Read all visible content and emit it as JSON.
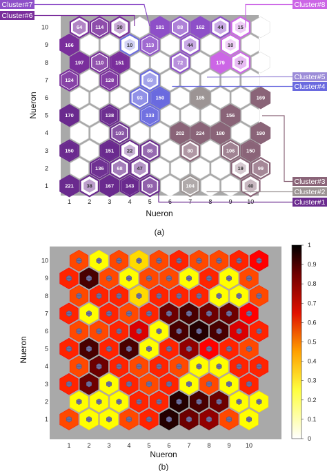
{
  "figure_a": {
    "caption": "(a)",
    "xlabel": "Nueron",
    "ylabel": "Nueron",
    "cluster_labels": [
      "Cluster#7",
      "Cluster#6",
      "Cluster#8",
      "Cluster#5",
      "Cluster#4",
      "Cluster#3",
      "Cluster#2",
      "Cluster#1"
    ],
    "cluster_colors": {
      "Cluster#1": "#6a2a8e",
      "Cluster#2": "#9c9494",
      "Cluster#3": "#8a6478",
      "Cluster#4": "#6a6adf",
      "Cluster#5": "#9c8cd8",
      "Cluster#6": "#7a2e9c",
      "Cluster#7": "#8e4fc8",
      "Cluster#8": "#cc66e6"
    }
  },
  "figure_b": {
    "caption": "(b)",
    "xlabel": "Nueron",
    "ylabel": "Nueron",
    "colorbar_ticks": [
      "0",
      "0.1",
      "0.2",
      "0.3",
      "0.4",
      "0.5",
      "0.6",
      "0.7",
      "0.8",
      "0.9",
      "1"
    ]
  },
  "chart_data": [
    {
      "type": "heatmap",
      "title": "",
      "xlabel": "Nueron",
      "ylabel": "Nueron",
      "x_ticks": [
        1,
        2,
        3,
        4,
        5,
        6,
        7,
        8,
        9,
        10
      ],
      "y_ticks": [
        1,
        2,
        3,
        4,
        5,
        6,
        7,
        8,
        9,
        10
      ],
      "cells": [
        {
          "row": 10,
          "col": 1,
          "count": 64,
          "cluster": "Cluster#6"
        },
        {
          "row": 10,
          "col": 2,
          "count": 114,
          "cluster": "Cluster#6"
        },
        {
          "row": 10,
          "col": 3,
          "count": 30,
          "cluster": "Cluster#6"
        },
        {
          "row": 10,
          "col": 5,
          "count": 181,
          "cluster": "Cluster#7"
        },
        {
          "row": 10,
          "col": 6,
          "count": 88,
          "cluster": "Cluster#7"
        },
        {
          "row": 10,
          "col": 7,
          "count": 162,
          "cluster": "Cluster#7"
        },
        {
          "row": 10,
          "col": 8,
          "count": 44,
          "cluster": "Cluster#7"
        },
        {
          "row": 10,
          "col": 9,
          "count": 15,
          "cluster": "Cluster#8"
        },
        {
          "row": 9,
          "col": 1,
          "count": 166,
          "cluster": "Cluster#6"
        },
        {
          "row": 9,
          "col": 4,
          "count": 10,
          "cluster": "Cluster#4"
        },
        {
          "row": 9,
          "col": 5,
          "count": 113,
          "cluster": "Cluster#7"
        },
        {
          "row": 9,
          "col": 7,
          "count": 44,
          "cluster": "Cluster#7"
        },
        {
          "row": 9,
          "col": 9,
          "count": 10,
          "cluster": "Cluster#8"
        },
        {
          "row": 8,
          "col": 1,
          "count": 197,
          "cluster": "Cluster#6"
        },
        {
          "row": 8,
          "col": 2,
          "count": 110,
          "cluster": "Cluster#6"
        },
        {
          "row": 8,
          "col": 3,
          "count": 151,
          "cluster": "Cluster#6"
        },
        {
          "row": 8,
          "col": 6,
          "count": 72,
          "cluster": "Cluster#7"
        },
        {
          "row": 8,
          "col": 8,
          "count": 179,
          "cluster": "Cluster#8"
        },
        {
          "row": 8,
          "col": 9,
          "count": 37,
          "cluster": "Cluster#8"
        },
        {
          "row": 7,
          "col": 1,
          "count": 124,
          "cluster": "Cluster#6"
        },
        {
          "row": 7,
          "col": 3,
          "count": 128,
          "cluster": "Cluster#6"
        },
        {
          "row": 7,
          "col": 5,
          "count": 69,
          "cluster": "Cluster#4"
        },
        {
          "row": 6,
          "col": 4,
          "count": 93,
          "cluster": "Cluster#4"
        },
        {
          "row": 6,
          "col": 5,
          "count": 150,
          "cluster": "Cluster#4"
        },
        {
          "row": 6,
          "col": 7,
          "count": 185,
          "cluster": "Cluster#2"
        },
        {
          "row": 6,
          "col": 10,
          "count": 169,
          "cluster": "Cluster#3"
        },
        {
          "row": 5,
          "col": 1,
          "count": 170,
          "cluster": "Cluster#1"
        },
        {
          "row": 5,
          "col": 3,
          "count": 138,
          "cluster": "Cluster#1"
        },
        {
          "row": 5,
          "col": 5,
          "count": 133,
          "cluster": "Cluster#4"
        },
        {
          "row": 5,
          "col": 9,
          "count": 156,
          "cluster": "Cluster#3"
        },
        {
          "row": 4,
          "col": 3,
          "count": 103,
          "cluster": "Cluster#1"
        },
        {
          "row": 4,
          "col": 6,
          "count": 202,
          "cluster": "Cluster#3"
        },
        {
          "row": 4,
          "col": 7,
          "count": 224,
          "cluster": "Cluster#3"
        },
        {
          "row": 4,
          "col": 8,
          "count": 180,
          "cluster": "Cluster#3"
        },
        {
          "row": 4,
          "col": 10,
          "count": 190,
          "cluster": "Cluster#3"
        },
        {
          "row": 3,
          "col": 1,
          "count": 150,
          "cluster": "Cluster#1"
        },
        {
          "row": 3,
          "col": 3,
          "count": 151,
          "cluster": "Cluster#1"
        },
        {
          "row": 3,
          "col": 4,
          "count": 22,
          "cluster": "Cluster#1"
        },
        {
          "row": 3,
          "col": 5,
          "count": 86,
          "cluster": "Cluster#1"
        },
        {
          "row": 3,
          "col": 7,
          "count": 80,
          "cluster": "Cluster#3"
        },
        {
          "row": 3,
          "col": 9,
          "count": 106,
          "cluster": "Cluster#3"
        },
        {
          "row": 3,
          "col": 10,
          "count": 150,
          "cluster": "Cluster#3"
        },
        {
          "row": 2,
          "col": 2,
          "count": 136,
          "cluster": "Cluster#1"
        },
        {
          "row": 2,
          "col": 3,
          "count": 68,
          "cluster": "Cluster#1"
        },
        {
          "row": 2,
          "col": 4,
          "count": 47,
          "cluster": "Cluster#1"
        },
        {
          "row": 2,
          "col": 9,
          "count": 19,
          "cluster": "Cluster#3"
        },
        {
          "row": 2,
          "col": 10,
          "count": 99,
          "cluster": "Cluster#3"
        },
        {
          "row": 1,
          "col": 1,
          "count": 221,
          "cluster": "Cluster#1"
        },
        {
          "row": 1,
          "col": 2,
          "count": 38,
          "cluster": "Cluster#1"
        },
        {
          "row": 1,
          "col": 3,
          "count": 167,
          "cluster": "Cluster#1"
        },
        {
          "row": 1,
          "col": 4,
          "count": 143,
          "cluster": "Cluster#1"
        },
        {
          "row": 1,
          "col": 5,
          "count": 93,
          "cluster": "Cluster#1"
        },
        {
          "row": 1,
          "col": 7,
          "count": 104,
          "cluster": "Cluster#2"
        },
        {
          "row": 1,
          "col": 10,
          "count": 40,
          "cluster": "Cluster#3"
        }
      ]
    },
    {
      "type": "heatmap",
      "title": "",
      "xlabel": "Nueron",
      "ylabel": "Nueron",
      "x_ticks": [
        1,
        2,
        3,
        4,
        5,
        6,
        7,
        8,
        9,
        10
      ],
      "y_ticks": [
        1,
        2,
        3,
        4,
        5,
        6,
        7,
        8,
        9,
        10
      ],
      "colorbar_range": [
        0,
        1
      ],
      "colorscale": "hot (black=1, red, yellow, white=0)",
      "neighbor_distance_rows_top_to_bottom": [
        [
          0.55,
          0.3,
          0.55,
          0.35,
          0.55,
          0.6,
          0.55,
          0.55,
          0.6,
          0.65
        ],
        [
          0.6,
          0.9,
          0.55,
          0.3,
          0.55,
          0.55,
          0.3,
          0.6,
          0.3,
          0.55
        ],
        [
          0.55,
          0.6,
          0.6,
          0.35,
          0.6,
          0.6,
          0.6,
          0.3,
          0.3,
          0.55
        ],
        [
          0.6,
          0.3,
          0.6,
          0.55,
          0.6,
          0.85,
          0.9,
          0.85,
          0.85,
          0.65
        ],
        [
          0.55,
          0.55,
          0.6,
          0.7,
          0.3,
          0.9,
          0.95,
          0.9,
          0.7,
          0.6
        ],
        [
          0.6,
          0.9,
          0.6,
          0.9,
          0.3,
          0.6,
          0.8,
          0.65,
          0.6,
          0.55
        ],
        [
          0.55,
          0.85,
          0.6,
          0.55,
          0.6,
          0.55,
          0.3,
          0.3,
          0.6,
          0.6
        ],
        [
          0.6,
          0.85,
          0.3,
          0.6,
          0.55,
          0.6,
          0.3,
          0.55,
          0.3,
          0.6
        ],
        [
          0.3,
          0.3,
          0.3,
          0.6,
          0.6,
          0.95,
          0.9,
          0.85,
          0.3,
          0.3
        ],
        [
          0.55,
          0.3,
          0.3,
          0.55,
          0.6,
          0.95,
          0.85,
          0.8,
          0.55,
          0.3
        ]
      ]
    }
  ]
}
